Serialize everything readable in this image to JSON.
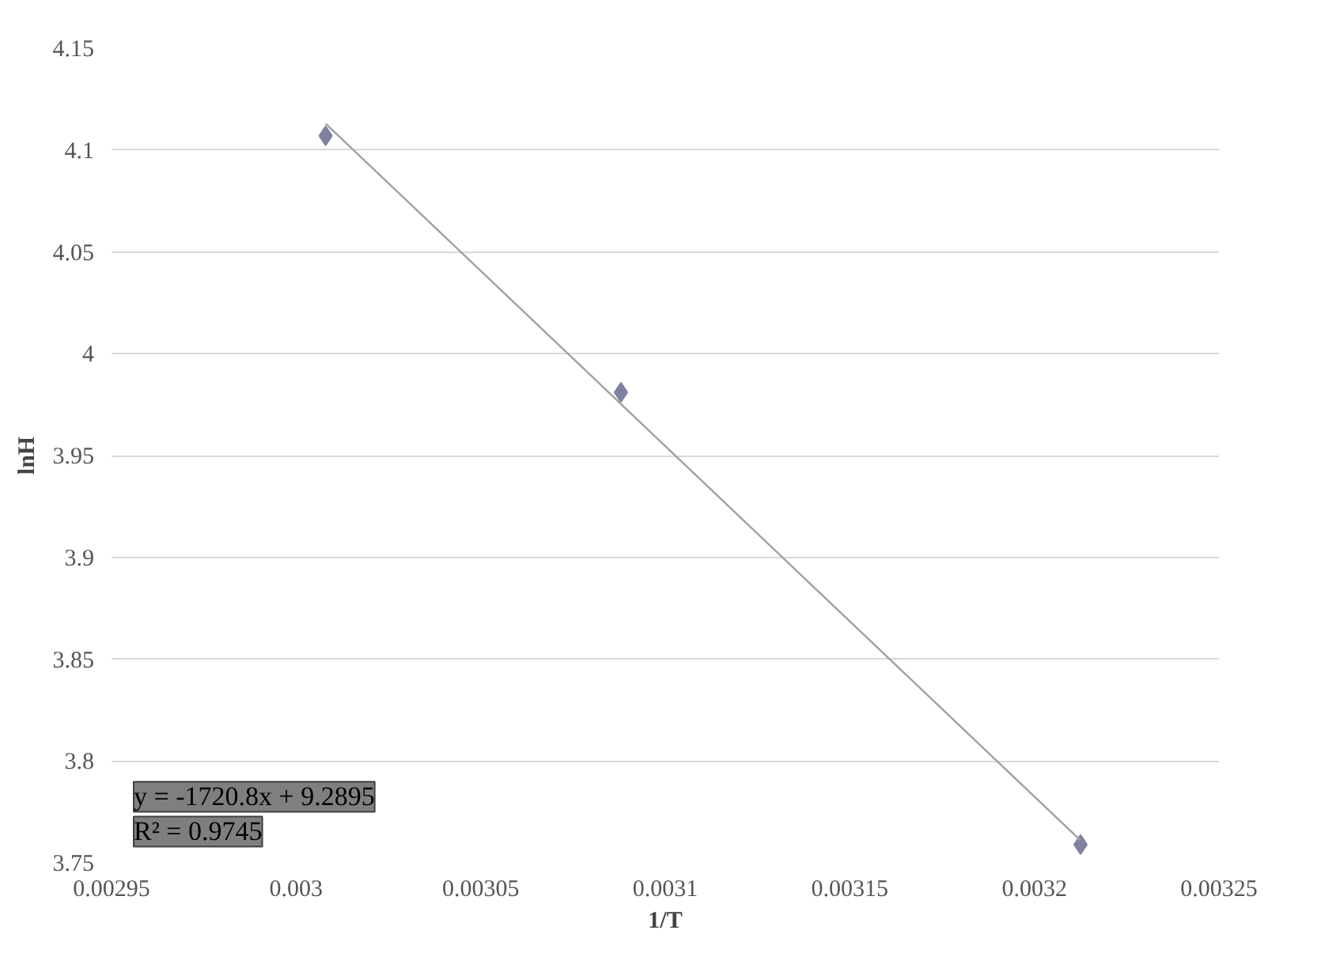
{
  "chart_data": {
    "type": "scatter",
    "xlabel": "1/T",
    "ylabel": "lnH",
    "series": [
      {
        "color": "#8080a0",
        "x": [
          0.003008,
          0.003088,
          0.0032125
        ],
        "values": [
          4.107,
          3.981,
          3.759
        ],
        "marker": "diamond"
      },
      {
        "type": "line",
        "color": "#a0a0a0",
        "x": [
          0.003008,
          0.0032125
        ],
        "values": [
          4.113,
          3.761
        ],
        "marker": "none",
        "line_style": "solid"
      }
    ],
    "xlim": [
      0.00295,
      0.00325
    ],
    "xticks": [
      0.00295,
      0.003,
      0.00305,
      0.0031,
      0.00315,
      0.0032,
      0.00325
    ],
    "ylim": [
      3.75,
      4.15
    ],
    "yticks": [
      3.75,
      3.8,
      3.85,
      3.9,
      3.95,
      4,
      4.05,
      4.1,
      4.15
    ],
    "grid": "y",
    "annotations": [
      "y = -1720.8x + 9.2895",
      "R² = 0.9745"
    ]
  }
}
